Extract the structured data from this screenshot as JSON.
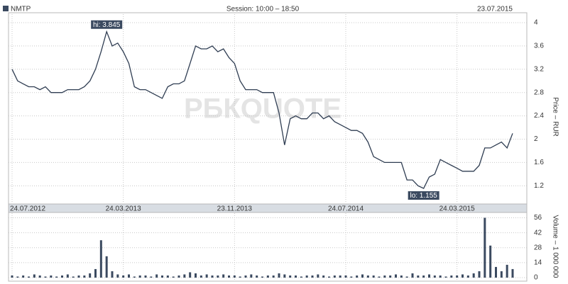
{
  "header": {
    "ticker": "NMTP",
    "session": "Session: 10:00 – 18:50",
    "date": "23.07.2015",
    "watermark": "РБКQUOTE"
  },
  "chart_data": [
    {
      "type": "line",
      "y_label": "Price – RUR",
      "color": "#2f3d52",
      "xlim": [
        0,
        90
      ],
      "xticks": [
        {
          "value": 0,
          "label": "24.07.2012"
        },
        {
          "value": 20,
          "label": "24.03.2013"
        },
        {
          "value": 40,
          "label": "23.11.2013"
        },
        {
          "value": 60,
          "label": "24.07.2014"
        },
        {
          "value": 80,
          "label": "24.03.2015"
        }
      ],
      "ylim": [
        0.9,
        4.17
      ],
      "yticks": [
        1.2,
        1.6,
        2,
        2.4,
        2.8,
        3.2,
        3.6,
        4
      ],
      "grid": true,
      "values": [
        3.2,
        3.0,
        2.95,
        2.9,
        2.9,
        2.85,
        2.9,
        2.8,
        2.8,
        2.8,
        2.85,
        2.85,
        2.85,
        2.9,
        3.0,
        3.2,
        3.5,
        3.845,
        3.6,
        3.65,
        3.5,
        3.3,
        2.9,
        2.85,
        2.85,
        2.8,
        2.75,
        2.7,
        2.9,
        2.95,
        2.95,
        3.0,
        3.3,
        3.6,
        3.55,
        3.55,
        3.6,
        3.5,
        3.55,
        3.4,
        3.3,
        3.0,
        2.85,
        2.85,
        2.85,
        2.8,
        2.8,
        2.8,
        2.45,
        1.9,
        2.35,
        2.4,
        2.35,
        2.35,
        2.45,
        2.45,
        2.35,
        2.4,
        2.3,
        2.25,
        2.2,
        2.15,
        2.15,
        2.1,
        1.95,
        1.7,
        1.65,
        1.6,
        1.6,
        1.6,
        1.6,
        1.3,
        1.3,
        1.2,
        1.155,
        1.35,
        1.4,
        1.65,
        1.6,
        1.55,
        1.5,
        1.45,
        1.45,
        1.45,
        1.55,
        1.85,
        1.85,
        1.9,
        1.95,
        1.85,
        2.1
      ],
      "annotations": [
        {
          "index": 17,
          "value": 3.845,
          "label": "hi: 3.845",
          "side": "above"
        },
        {
          "index": 74,
          "value": 1.155,
          "label": "lo: 1.155",
          "side": "below"
        }
      ]
    },
    {
      "type": "bar",
      "y_label": "Volume – 1 000 000",
      "color": "#3b4a60",
      "xlim": [
        0,
        90
      ],
      "ylim": [
        0,
        61
      ],
      "yticks": [
        0,
        14,
        28,
        42,
        56
      ],
      "grid": true,
      "values": [
        2,
        1,
        2,
        1,
        3,
        2,
        1,
        2,
        1,
        2,
        3,
        1,
        2,
        2,
        4,
        8,
        35,
        20,
        6,
        3,
        2,
        3,
        1,
        2,
        2,
        1,
        3,
        2,
        2,
        1,
        2,
        3,
        5,
        4,
        2,
        3,
        2,
        2,
        3,
        2,
        2,
        1,
        2,
        3,
        2,
        1,
        2,
        2,
        4,
        3,
        2,
        2,
        1,
        2,
        2,
        3,
        2,
        1,
        2,
        2,
        2,
        1,
        2,
        3,
        2,
        2,
        1,
        2,
        2,
        3,
        2,
        1,
        4,
        2,
        2,
        3,
        2,
        2,
        1,
        2,
        2,
        3,
        2,
        4,
        6,
        56,
        30,
        10,
        6,
        12,
        8
      ]
    }
  ]
}
